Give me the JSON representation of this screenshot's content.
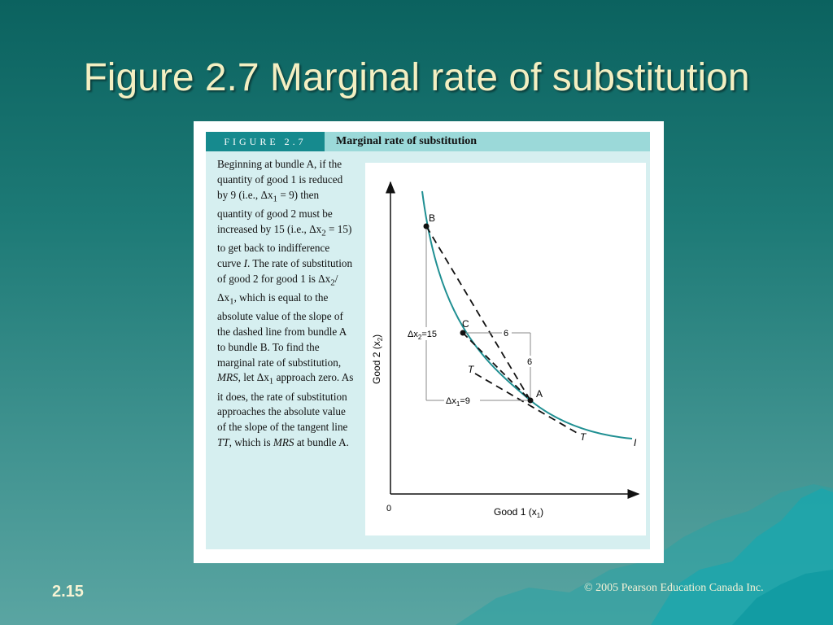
{
  "slide": {
    "title": "Figure 2.7 Marginal rate of substitution",
    "number": "2.15",
    "copyright": "© 2005 Pearson Education Canada Inc."
  },
  "figure": {
    "label": "FIGURE 2.7",
    "caption": "Marginal rate of substitution"
  },
  "description": {
    "p1": "Beginning at bundle A, if the quantity of good 1 is reduced by 9 (i.e., Δx",
    "sub1": "1",
    "p2": " = 9) then quantity of good 2 must be increased by 15 (i.e., Δx",
    "sub2": "2",
    "p3": " = 15) to get back to indifference curve ",
    "curve": "I",
    "p4": ". The rate of substitution of good 2 for good 1 is Δx",
    "sub3": "2",
    "p5": "/Δx",
    "sub4": "1",
    "p6": ", which is equal to the absolute value of the slope of the dashed line from bundle A to bundle B. To find the marginal rate of substitution, ",
    "mrs1": "MRS",
    "p7": ", let Δx",
    "sub5": "1",
    "p8": " approach zero. As it does, the rate of substitution approaches the absolute value of the slope of the tangent line ",
    "tt": "TT",
    "p9": ", which is ",
    "mrs2": "MRS",
    "p10": " at bundle A."
  },
  "chart": {
    "ylabel_main": "Good 2 (x",
    "ylabel_sub": "2",
    "ylabel_end": ")",
    "xlabel_main": "Good 1 (x",
    "xlabel_sub": "1",
    "xlabel_end": ")",
    "origin": "0",
    "point_b": "B",
    "point_c": "C",
    "point_a": "A",
    "curve_label": "I",
    "tangent_upper": "T",
    "tangent_lower": "T",
    "dx2_main": "Δx",
    "dx2_sub": "2",
    "dx2_val": "=15",
    "dx1_main": "Δx",
    "dx1_sub": "1",
    "dx1_val": "=9",
    "step_h": "6",
    "step_v": "6"
  },
  "colors": {
    "curve": "#1f8f92",
    "label_bg": "#168a8e",
    "title": "#f3efc2"
  }
}
